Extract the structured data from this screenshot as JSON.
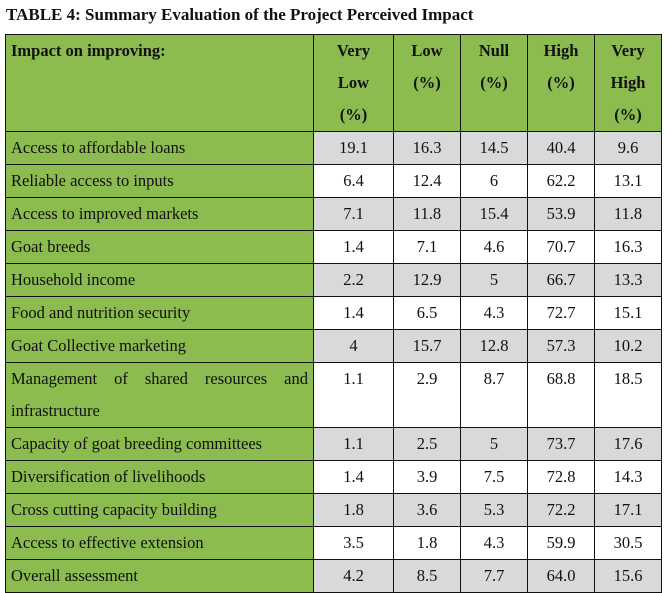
{
  "title": "TABLE 4: Summary Evaluation of the Project Perceived Impact",
  "headers": [
    "Impact on improving:",
    "Very Low (%)",
    "Low (%)",
    "Null (%)",
    "High (%)",
    "Very High (%)"
  ],
  "rows": [
    {
      "label": "Access to affordable loans",
      "values": [
        "19.1",
        "16.3",
        "14.5",
        "40.4",
        "9.6"
      ]
    },
    {
      "label": "Reliable access to inputs",
      "values": [
        "6.4",
        "12.4",
        "6",
        "62.2",
        "13.1"
      ]
    },
    {
      "label": "Access to improved markets",
      "values": [
        "7.1",
        "11.8",
        "15.4",
        "53.9",
        "11.8"
      ]
    },
    {
      "label": "Goat breeds",
      "values": [
        "1.4",
        "7.1",
        "4.6",
        "70.7",
        "16.3"
      ]
    },
    {
      "label": "Household income",
      "values": [
        "2.2",
        "12.9",
        "5",
        "66.7",
        "13.3"
      ]
    },
    {
      "label": "Food and nutrition security",
      "values": [
        "1.4",
        "6.5",
        "4.3",
        "72.7",
        "15.1"
      ]
    },
    {
      "label": "Goat Collective marketing",
      "values": [
        "4",
        "15.7",
        "12.8",
        "57.3",
        "10.2"
      ]
    },
    {
      "label": "Management of shared resources and infrastructure",
      "values": [
        "1.1",
        "2.9",
        "8.7",
        "68.8",
        "18.5"
      ]
    },
    {
      "label": "Capacity of goat breeding committees",
      "values": [
        "1.1",
        "2.5",
        "5",
        "73.7",
        "17.6"
      ]
    },
    {
      "label": "Diversification of livelihoods",
      "values": [
        "1.4",
        "3.9",
        "7.5",
        "72.8",
        "14.3"
      ]
    },
    {
      "label": "Cross cutting capacity building",
      "values": [
        "1.8",
        "3.6",
        "5.3",
        "72.2",
        "17.1"
      ]
    },
    {
      "label": "Access to effective extension",
      "values": [
        "3.5",
        "1.8",
        "4.3",
        "59.9",
        "30.5"
      ]
    },
    {
      "label": "Overall assessment",
      "values": [
        "4.2",
        "8.5",
        "7.7",
        "64.0",
        "15.6"
      ]
    }
  ]
}
